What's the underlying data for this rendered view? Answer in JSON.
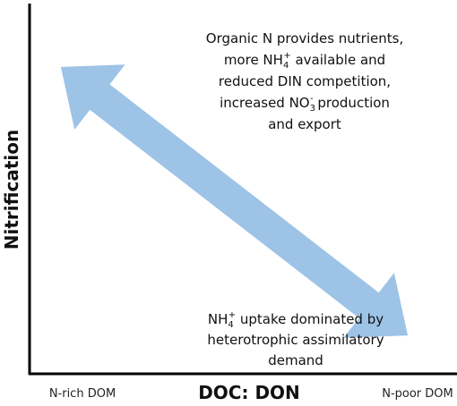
{
  "axes": {
    "y_label": "Nitrification",
    "x_label": "DOC: DON",
    "x_left": "N-rich DOM",
    "x_right": "N-poor DOM"
  },
  "top_note": {
    "lines": [
      [
        {
          "text": "Organic N provides nutrients,"
        }
      ],
      [
        {
          "text": "more NH"
        },
        {
          "text": "4",
          "script": "sub"
        },
        {
          "text": "+",
          "script": "sup"
        },
        {
          "text": " available and"
        }
      ],
      [
        {
          "text": "reduced DIN competition,"
        }
      ],
      [
        {
          "text": "increased NO"
        },
        {
          "text": "3",
          "script": "sub"
        },
        {
          "text": "-",
          "script": "sup"
        },
        {
          "text": " production"
        }
      ],
      [
        {
          "text": "and export"
        }
      ]
    ]
  },
  "bottom_note": {
    "lines": [
      [
        {
          "text": "NH"
        },
        {
          "text": "4",
          "script": "sub"
        },
        {
          "text": "+",
          "script": "sup"
        },
        {
          "text": " uptake dominated by"
        }
      ],
      [
        {
          "text": "heterotrophic assimilatory"
        }
      ],
      [
        {
          "text": "demand"
        }
      ]
    ]
  }
}
